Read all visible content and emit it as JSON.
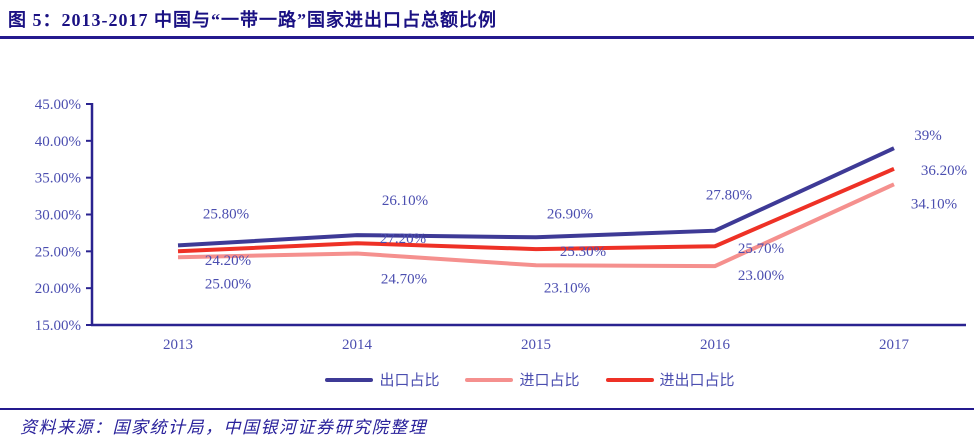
{
  "header": {
    "title": "图 5：2013-2017 中国与“一带一路”国家进出口占总额比例"
  },
  "footer": {
    "source": "资料来源：国家统计局，中国银河证券研究院整理"
  },
  "colors": {
    "title_navy": "#1a1183",
    "rule_navy": "#241a8e",
    "axis_navy": "#2a2390",
    "chart_text_blue": "#4b4eb0",
    "export_line": "#3e3a96",
    "import_line": "#f5908e",
    "total_line": "#ee3126"
  },
  "chart_data": {
    "type": "line",
    "title": "图 5：2013-2017 中国与“一带一路”国家进出口占总额比例",
    "x_categories": [
      "2013",
      "2014",
      "2015",
      "2016",
      "2017"
    ],
    "y_ticks": [
      "45.00%",
      "40.00%",
      "35.00%",
      "30.00%",
      "25.00%",
      "20.00%",
      "15.00%"
    ],
    "ylim": [
      15,
      45
    ],
    "ytick_step": 5,
    "grid": false,
    "legend_position": "bottom",
    "series": [
      {
        "name": "出口占比",
        "color": "#3e3a96",
        "values": [
          25.8,
          27.2,
          26.9,
          27.8,
          39.0
        ],
        "point_labels": [
          "25.80%",
          "27.20%",
          "26.90%",
          "27.80%",
          "39%"
        ]
      },
      {
        "name": "进口占比",
        "color": "#f5908e",
        "values": [
          24.2,
          24.7,
          23.1,
          23.0,
          34.1
        ],
        "point_labels": [
          "24.20%",
          "24.70%",
          "23.10%",
          "23.00%",
          "34.10%"
        ]
      },
      {
        "name": "进出口占比",
        "color": "#ee3126",
        "values": [
          25.0,
          26.1,
          25.3,
          25.7,
          36.2
        ],
        "point_labels": [
          "25.00%",
          "26.10%",
          "25.30%",
          "25.70%",
          "36.20%"
        ]
      }
    ]
  }
}
